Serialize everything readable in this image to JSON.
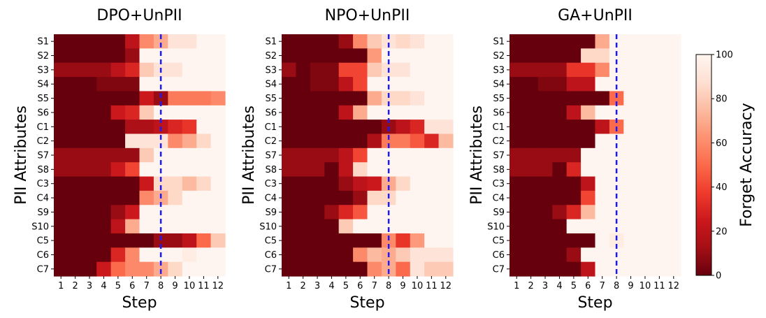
{
  "chart_data": {
    "type": "heatmap",
    "shared": {
      "rows": [
        "S1",
        "S2",
        "S3",
        "S4",
        "S5",
        "S6",
        "C1",
        "C2",
        "S7",
        "S8",
        "C3",
        "C4",
        "S9",
        "S10",
        "C5",
        "C6",
        "C7"
      ],
      "steps": [
        "1",
        "2",
        "3",
        "4",
        "5",
        "6",
        "7",
        "8",
        "9",
        "10",
        "11",
        "12"
      ],
      "xlabel": "Step",
      "ylabel": "PII Attributes",
      "marker_step": 7.5,
      "colorbar": {
        "label": "Forget Accuracy",
        "min": 0,
        "max": 100,
        "ticks": [
          0,
          20,
          40,
          60,
          80,
          100
        ]
      },
      "colors": {
        "low": "#67000d",
        "high": "#fff5f0",
        "marker": "#1a1aff"
      }
    },
    "panels": [
      {
        "title": "DPO+UnPII",
        "values": [
          [
            0,
            0,
            0,
            0,
            0,
            20,
            60,
            70,
            90,
            90,
            100,
            100
          ],
          [
            0,
            0,
            0,
            0,
            0,
            10,
            100,
            100,
            100,
            100,
            100,
            100
          ],
          [
            10,
            10,
            10,
            10,
            20,
            30,
            80,
            90,
            90,
            100,
            100,
            100
          ],
          [
            0,
            0,
            0,
            5,
            5,
            5,
            100,
            100,
            100,
            100,
            100,
            100
          ],
          [
            0,
            0,
            0,
            0,
            0,
            0,
            25,
            10,
            55,
            55,
            55,
            60
          ],
          [
            0,
            0,
            0,
            0,
            25,
            30,
            80,
            100,
            100,
            100,
            100,
            100
          ],
          [
            0,
            0,
            0,
            0,
            0,
            15,
            15,
            20,
            30,
            35,
            100,
            100
          ],
          [
            0,
            0,
            0,
            0,
            0,
            90,
            90,
            90,
            60,
            70,
            85,
            100
          ],
          [
            10,
            10,
            10,
            10,
            10,
            10,
            80,
            100,
            100,
            100,
            100,
            100
          ],
          [
            10,
            10,
            10,
            10,
            25,
            40,
            100,
            100,
            100,
            100,
            100,
            100
          ],
          [
            0,
            0,
            0,
            0,
            0,
            0,
            25,
            85,
            85,
            75,
            85,
            100
          ],
          [
            0,
            0,
            0,
            0,
            0,
            0,
            60,
            70,
            85,
            100,
            100,
            100
          ],
          [
            0,
            0,
            0,
            0,
            10,
            25,
            100,
            100,
            100,
            100,
            100,
            100
          ],
          [
            0,
            0,
            0,
            0,
            20,
            70,
            100,
            100,
            100,
            100,
            100,
            100
          ],
          [
            0,
            0,
            0,
            0,
            0,
            0,
            0,
            10,
            10,
            20,
            50,
            80
          ],
          [
            0,
            0,
            0,
            0,
            30,
            60,
            100,
            100,
            100,
            95,
            100,
            100
          ],
          [
            0,
            0,
            0,
            25,
            50,
            60,
            60,
            70,
            85,
            100,
            100,
            100
          ]
        ]
      },
      {
        "title": "NPO+UnPII",
        "values": [
          [
            0,
            0,
            0,
            0,
            10,
            60,
            80,
            90,
            85,
            90,
            100,
            100
          ],
          [
            0,
            0,
            0,
            0,
            0,
            0,
            65,
            100,
            100,
            100,
            100,
            100
          ],
          [
            10,
            0,
            5,
            5,
            40,
            40,
            80,
            90,
            90,
            100,
            100,
            100
          ],
          [
            0,
            0,
            5,
            5,
            20,
            40,
            100,
            100,
            100,
            100,
            100,
            100
          ],
          [
            0,
            0,
            0,
            0,
            0,
            0,
            70,
            85,
            85,
            90,
            100,
            100
          ],
          [
            0,
            0,
            0,
            0,
            20,
            70,
            100,
            100,
            100,
            100,
            100,
            100
          ],
          [
            0,
            0,
            0,
            0,
            0,
            0,
            0,
            10,
            20,
            30,
            90,
            90
          ],
          [
            0,
            0,
            0,
            0,
            0,
            0,
            15,
            55,
            55,
            45,
            30,
            75
          ],
          [
            10,
            10,
            10,
            10,
            20,
            40,
            100,
            100,
            100,
            100,
            100,
            100
          ],
          [
            10,
            10,
            10,
            0,
            20,
            85,
            100,
            100,
            100,
            100,
            100,
            100
          ],
          [
            0,
            0,
            0,
            0,
            10,
            20,
            25,
            70,
            85,
            100,
            100,
            100
          ],
          [
            0,
            0,
            0,
            0,
            0,
            10,
            85,
            85,
            100,
            100,
            100,
            100
          ],
          [
            0,
            0,
            0,
            10,
            30,
            45,
            100,
            100,
            100,
            100,
            100,
            100
          ],
          [
            0,
            0,
            0,
            0,
            80,
            100,
            100,
            100,
            100,
            100,
            100,
            100
          ],
          [
            0,
            0,
            0,
            0,
            0,
            0,
            0,
            60,
            35,
            65,
            100,
            100
          ],
          [
            0,
            0,
            0,
            0,
            0,
            60,
            75,
            70,
            80,
            90,
            90,
            90
          ],
          [
            0,
            0,
            0,
            0,
            0,
            0,
            60,
            70,
            50,
            90,
            80,
            80
          ]
        ]
      },
      {
        "title": "GA+UnPII",
        "values": [
          [
            0,
            0,
            0,
            0,
            0,
            0,
            70,
            100,
            100,
            100,
            100,
            100
          ],
          [
            0,
            0,
            0,
            0,
            0,
            85,
            85,
            100,
            100,
            100,
            100,
            100
          ],
          [
            10,
            10,
            10,
            10,
            35,
            35,
            60,
            100,
            100,
            100,
            100,
            100
          ],
          [
            0,
            0,
            5,
            5,
            20,
            20,
            100,
            100,
            100,
            100,
            100,
            100
          ],
          [
            0,
            0,
            0,
            0,
            0,
            0,
            0,
            50,
            100,
            100,
            100,
            100
          ],
          [
            0,
            0,
            0,
            0,
            20,
            75,
            100,
            100,
            100,
            100,
            100,
            100
          ],
          [
            0,
            0,
            0,
            0,
            0,
            0,
            20,
            50,
            100,
            100,
            100,
            100
          ],
          [
            0,
            0,
            0,
            0,
            0,
            0,
            100,
            100,
            100,
            100,
            100,
            100
          ],
          [
            10,
            10,
            10,
            10,
            10,
            100,
            100,
            100,
            100,
            100,
            100,
            100
          ],
          [
            10,
            10,
            10,
            0,
            30,
            100,
            100,
            100,
            100,
            100,
            100,
            100
          ],
          [
            0,
            0,
            0,
            0,
            0,
            20,
            100,
            100,
            100,
            100,
            100,
            100
          ],
          [
            0,
            0,
            0,
            0,
            0,
            40,
            100,
            100,
            100,
            100,
            100,
            100
          ],
          [
            0,
            0,
            0,
            10,
            30,
            75,
            100,
            100,
            100,
            100,
            100,
            100
          ],
          [
            0,
            0,
            0,
            0,
            100,
            100,
            100,
            100,
            100,
            100,
            100,
            100
          ],
          [
            0,
            0,
            0,
            0,
            0,
            0,
            100,
            95,
            100,
            100,
            100,
            100
          ],
          [
            0,
            0,
            0,
            0,
            10,
            100,
            100,
            100,
            100,
            100,
            100,
            100
          ],
          [
            0,
            0,
            0,
            0,
            0,
            20,
            100,
            100,
            100,
            100,
            100,
            100
          ]
        ]
      }
    ]
  }
}
